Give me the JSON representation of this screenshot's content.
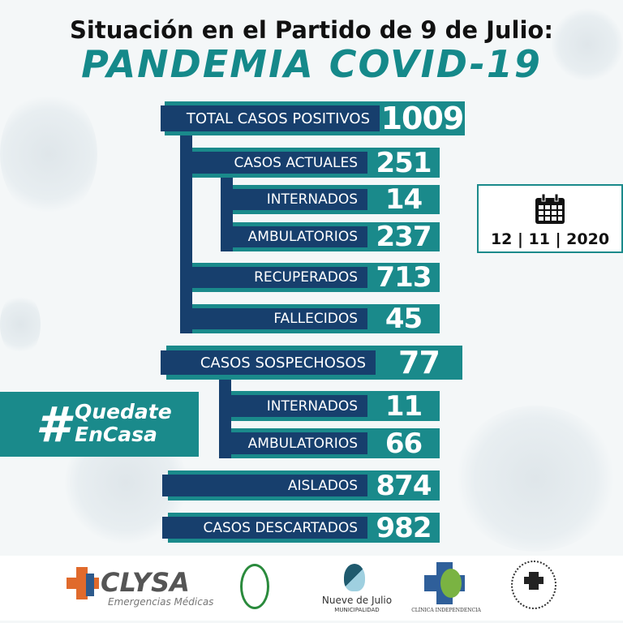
{
  "header": {
    "line1": "Situación en el Partido de 9 de Julio:",
    "line2": "PANDEMIA COVID-19"
  },
  "stats": {
    "total_positivos": {
      "label": "TOTAL CASOS POSITIVOS",
      "value": "1009"
    },
    "casos_actuales": {
      "label": "CASOS ACTUALES",
      "value": "251"
    },
    "internados": {
      "label": "INTERNADOS",
      "value": "14"
    },
    "ambulatorios": {
      "label": "AMBULATORIOS",
      "value": "237"
    },
    "recuperados": {
      "label": "RECUPERADOS",
      "value": "713"
    },
    "fallecidos": {
      "label": "FALLECIDOS",
      "value": "45"
    },
    "sospechosos": {
      "label": "CASOS SOSPECHOSOS",
      "value": "77"
    },
    "sosp_internados": {
      "label": "INTERNADOS",
      "value": "11"
    },
    "sosp_ambulatorios": {
      "label": "AMBULATORIOS",
      "value": "66"
    },
    "aislados": {
      "label": "AISLADOS",
      "value": "874"
    },
    "descartados": {
      "label": "CASOS DESCARTADOS",
      "value": "982"
    }
  },
  "date": {
    "icon": "calendar-icon",
    "text": "12 | 11 | 2020"
  },
  "hashtag": {
    "symbol": "#",
    "line1": "Quedate",
    "line2": "EnCasa"
  },
  "logos": {
    "clysa": "CLYSA",
    "clysa_sub": "Emergencias Médicas",
    "nueve": "Nueve de Julio",
    "nueve_sub": "MUNICIPALIDAD",
    "clinica": "CLÍNICA INDEPENDENCIA"
  },
  "colors": {
    "teal": "#1a8a8b",
    "navy": "#173f6d"
  }
}
